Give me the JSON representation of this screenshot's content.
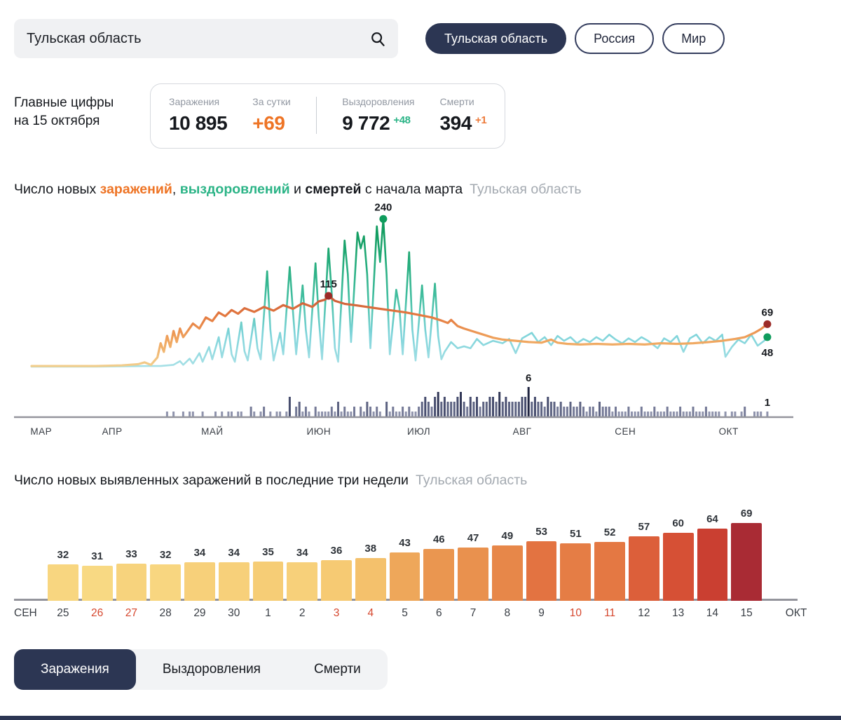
{
  "search": {
    "value": "Тульская область"
  },
  "region_tabs": [
    {
      "label": "Тульская область",
      "active": true
    },
    {
      "label": "Россия",
      "active": false
    },
    {
      "label": "Мир",
      "active": false
    }
  ],
  "stats": {
    "heading_line1": "Главные цифры",
    "heading_line2": "на 15 октября",
    "infections_label": "Заражения",
    "infections_value": "10 895",
    "daily_label": "За сутки",
    "daily_value": "+69",
    "recovered_label": "Выздоровления",
    "recovered_value": "9 772",
    "recovered_delta": "+48",
    "deaths_label": "Смерти",
    "deaths_value": "394",
    "deaths_delta": "+1"
  },
  "chart_data": [
    {
      "id": "timeline",
      "type": "line+bar",
      "title_parts": [
        {
          "text": "Число новых ",
          "style": "normal"
        },
        {
          "text": "заражений",
          "style": "orange"
        },
        {
          "text": ", ",
          "style": "normal"
        },
        {
          "text": "выздоровлений",
          "style": "green"
        },
        {
          "text": " и ",
          "style": "normal"
        },
        {
          "text": "смертей",
          "style": "bold"
        },
        {
          "text": " с начала марта",
          "style": "normal"
        }
      ],
      "region": "Тульская область",
      "months": [
        {
          "label": "МАР",
          "day": 3
        },
        {
          "label": "АПР",
          "day": 25
        },
        {
          "label": "МАЙ",
          "day": 56
        },
        {
          "label": "ИЮН",
          "day": 89
        },
        {
          "label": "ИЮЛ",
          "day": 120
        },
        {
          "label": "АВГ",
          "day": 152
        },
        {
          "label": "СЕН",
          "day": 184
        },
        {
          "label": "ОКТ",
          "day": 216
        }
      ],
      "infections_points": [
        [
          0,
          1
        ],
        [
          10,
          1
        ],
        [
          20,
          1
        ],
        [
          28,
          2
        ],
        [
          33,
          4
        ],
        [
          35,
          7
        ],
        [
          37,
          3
        ],
        [
          39,
          15
        ],
        [
          40,
          38
        ],
        [
          41,
          24
        ],
        [
          42,
          50
        ],
        [
          43,
          32
        ],
        [
          44,
          58
        ],
        [
          45,
          40
        ],
        [
          46,
          62
        ],
        [
          47,
          48
        ],
        [
          48,
          55
        ],
        [
          50,
          70
        ],
        [
          52,
          62
        ],
        [
          54,
          80
        ],
        [
          56,
          74
        ],
        [
          58,
          88
        ],
        [
          60,
          82
        ],
        [
          62,
          92
        ],
        [
          64,
          86
        ],
        [
          66,
          95
        ],
        [
          69,
          89
        ],
        [
          72,
          97
        ],
        [
          75,
          91
        ],
        [
          78,
          100
        ],
        [
          81,
          94
        ],
        [
          84,
          103
        ],
        [
          87,
          97
        ],
        [
          89,
          106
        ],
        [
          91,
          109
        ],
        [
          92,
          115
        ],
        [
          94,
          107
        ],
        [
          97,
          102
        ],
        [
          100,
          100
        ],
        [
          104,
          97
        ],
        [
          108,
          94
        ],
        [
          112,
          91
        ],
        [
          116,
          88
        ],
        [
          120,
          84
        ],
        [
          124,
          80
        ],
        [
          127,
          75
        ],
        [
          129,
          71
        ],
        [
          130,
          76
        ],
        [
          132,
          66
        ],
        [
          134,
          62
        ],
        [
          137,
          57
        ],
        [
          140,
          52
        ],
        [
          143,
          47
        ],
        [
          146,
          44
        ],
        [
          150,
          42
        ],
        [
          154,
          40
        ],
        [
          158,
          39
        ],
        [
          161,
          44
        ],
        [
          163,
          39
        ],
        [
          166,
          37
        ],
        [
          170,
          36
        ],
        [
          175,
          37
        ],
        [
          180,
          36
        ],
        [
          185,
          37
        ],
        [
          190,
          36
        ],
        [
          195,
          38
        ],
        [
          200,
          37
        ],
        [
          205,
          38
        ],
        [
          210,
          40
        ],
        [
          214,
          42
        ],
        [
          218,
          45
        ],
        [
          221,
          48
        ],
        [
          224,
          55
        ],
        [
          226,
          61
        ],
        [
          228,
          69
        ]
      ],
      "recoveries_points": [
        [
          0,
          0
        ],
        [
          20,
          0
        ],
        [
          36,
          1
        ],
        [
          40,
          1
        ],
        [
          44,
          3
        ],
        [
          46,
          9
        ],
        [
          47,
          3
        ],
        [
          49,
          13
        ],
        [
          50,
          5
        ],
        [
          52,
          22
        ],
        [
          53,
          8
        ],
        [
          55,
          32
        ],
        [
          56,
          12
        ],
        [
          58,
          48
        ],
        [
          59,
          15
        ],
        [
          61,
          62
        ],
        [
          62,
          20
        ],
        [
          63,
          8
        ],
        [
          65,
          72
        ],
        [
          66,
          25
        ],
        [
          67,
          10
        ],
        [
          69,
          78
        ],
        [
          70,
          30
        ],
        [
          71,
          12
        ],
        [
          73,
          155
        ],
        [
          74,
          60
        ],
        [
          75,
          10
        ],
        [
          77,
          55
        ],
        [
          78,
          20
        ],
        [
          80,
          162
        ],
        [
          81,
          90
        ],
        [
          82,
          20
        ],
        [
          84,
          132
        ],
        [
          85,
          60
        ],
        [
          86,
          15
        ],
        [
          88,
          168
        ],
        [
          89,
          80
        ],
        [
          90,
          12
        ],
        [
          92,
          192
        ],
        [
          93,
          120
        ],
        [
          94,
          30
        ],
        [
          95,
          8
        ],
        [
          97,
          205
        ],
        [
          98,
          150
        ],
        [
          99,
          40
        ],
        [
          101,
          218
        ],
        [
          102,
          192
        ],
        [
          103,
          212
        ],
        [
          104,
          150
        ],
        [
          105,
          30
        ],
        [
          107,
          228
        ],
        [
          108,
          170
        ],
        [
          109,
          240
        ],
        [
          110,
          150
        ],
        [
          111,
          20
        ],
        [
          113,
          125
        ],
        [
          114,
          95
        ],
        [
          115,
          20
        ],
        [
          117,
          186
        ],
        [
          118,
          60
        ],
        [
          119,
          10
        ],
        [
          121,
          132
        ],
        [
          122,
          60
        ],
        [
          123,
          15
        ],
        [
          125,
          135
        ],
        [
          126,
          50
        ],
        [
          127,
          12
        ],
        [
          128,
          24
        ],
        [
          130,
          40
        ],
        [
          132,
          30
        ],
        [
          134,
          33
        ],
        [
          136,
          30
        ],
        [
          138,
          45
        ],
        [
          140,
          35
        ],
        [
          143,
          42
        ],
        [
          146,
          38
        ],
        [
          148,
          45
        ],
        [
          150,
          22
        ],
        [
          152,
          46
        ],
        [
          155,
          55
        ],
        [
          157,
          40
        ],
        [
          159,
          48
        ],
        [
          161,
          35
        ],
        [
          163,
          50
        ],
        [
          165,
          42
        ],
        [
          167,
          48
        ],
        [
          169,
          38
        ],
        [
          171,
          45
        ],
        [
          173,
          40
        ],
        [
          175,
          48
        ],
        [
          177,
          42
        ],
        [
          179,
          52
        ],
        [
          181,
          44
        ],
        [
          183,
          38
        ],
        [
          185,
          46
        ],
        [
          187,
          40
        ],
        [
          189,
          48
        ],
        [
          191,
          42
        ],
        [
          194,
          30
        ],
        [
          196,
          46
        ],
        [
          198,
          40
        ],
        [
          200,
          50
        ],
        [
          202,
          24
        ],
        [
          204,
          46
        ],
        [
          206,
          52
        ],
        [
          208,
          38
        ],
        [
          210,
          48
        ],
        [
          212,
          42
        ],
        [
          214,
          52
        ],
        [
          215,
          16
        ],
        [
          217,
          32
        ],
        [
          219,
          44
        ],
        [
          221,
          38
        ],
        [
          223,
          52
        ],
        [
          225,
          34
        ],
        [
          227,
          42
        ],
        [
          228,
          48
        ]
      ],
      "deaths_daily": "0000000000000000000000000000000000000000001010010110010001010110110021012010110140231210211112131211202132121031211212112343245343334532434233443534333344634332433232232232122132221211121112111211121112111211121111010110120011101",
      "annotations": [
        {
          "text": "115",
          "target": "infections",
          "day": 92,
          "value": 115,
          "below": false
        },
        {
          "text": "240",
          "target": "recoveries",
          "day": 109,
          "value": 240,
          "below": false
        },
        {
          "text": "69",
          "target": "infections",
          "day": 228,
          "value": 69,
          "below": false
        },
        {
          "text": "48",
          "target": "recoveries",
          "day": 228,
          "value": 48,
          "below": true
        },
        {
          "text": "6",
          "target": "deaths",
          "day": 154,
          "value": 6
        },
        {
          "text": "1",
          "target": "deaths",
          "day": 228,
          "value": 1
        }
      ]
    },
    {
      "id": "daily",
      "type": "bar",
      "title": "Число новых выявленных заражений в последние три недели",
      "region": "Тульская область",
      "left_label": "СЕН",
      "right_label": "ОКТ",
      "bars": [
        {
          "date": "25",
          "value": 32,
          "weekend": false
        },
        {
          "date": "26",
          "value": 31,
          "weekend": true
        },
        {
          "date": "27",
          "value": 33,
          "weekend": true
        },
        {
          "date": "28",
          "value": 32,
          "weekend": false
        },
        {
          "date": "29",
          "value": 34,
          "weekend": false
        },
        {
          "date": "30",
          "value": 34,
          "weekend": false
        },
        {
          "date": "1",
          "value": 35,
          "weekend": false
        },
        {
          "date": "2",
          "value": 34,
          "weekend": false
        },
        {
          "date": "3",
          "value": 36,
          "weekend": true
        },
        {
          "date": "4",
          "value": 38,
          "weekend": true
        },
        {
          "date": "5",
          "value": 43,
          "weekend": false
        },
        {
          "date": "6",
          "value": 46,
          "weekend": false
        },
        {
          "date": "7",
          "value": 47,
          "weekend": false
        },
        {
          "date": "8",
          "value": 49,
          "weekend": false
        },
        {
          "date": "9",
          "value": 53,
          "weekend": false
        },
        {
          "date": "10",
          "value": 51,
          "weekend": true
        },
        {
          "date": "11",
          "value": 52,
          "weekend": true
        },
        {
          "date": "12",
          "value": 57,
          "weekend": false
        },
        {
          "date": "13",
          "value": 60,
          "weekend": false
        },
        {
          "date": "14",
          "value": 64,
          "weekend": false
        },
        {
          "date": "15",
          "value": 69,
          "weekend": false
        }
      ],
      "value_range": [
        31,
        69
      ]
    }
  ],
  "bottom_tabs": [
    {
      "label": "Заражения",
      "active": true
    },
    {
      "label": "Выздоровления",
      "active": false
    },
    {
      "label": "Смерти",
      "active": false
    }
  ],
  "colors": {
    "navy": "#2c3653",
    "orange": "#ee7425",
    "green": "#2cb487",
    "weekend_red": "#d6472e",
    "axis_gray": "#94959c",
    "infection_dot": "#9c2b28",
    "recovery_dot": "#0f9c5d",
    "bar_palette": [
      "#f8d983",
      "#f6cb74",
      "#f2b563",
      "#eb9a52",
      "#e68247",
      "#e16a3e",
      "#d75236",
      "#c93e31",
      "#a92b34"
    ],
    "death_scale": [
      "#8f93ac",
      "#757a97",
      "#5d6382",
      "#474d6e",
      "#323857",
      "#1f2440"
    ]
  }
}
